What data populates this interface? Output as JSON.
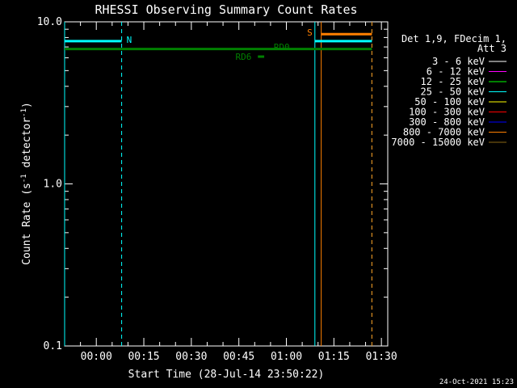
{
  "chart_data": {
    "type": "line",
    "title": "RHESSI Observing Summary Count Rates",
    "xlabel": "Start Time (28-Jul-14 23:50:22)",
    "ylabel_main": "Count Rate (s",
    "ylabel_sup1": "-1",
    "ylabel_mid": " detector",
    "ylabel_sup2": "-1",
    "ylabel_end": ")",
    "y_scale": "log",
    "ylim": [
      0.1,
      10.0
    ],
    "y_ticks": [
      {
        "value": 0.1,
        "label": "0.1"
      },
      {
        "value": 1.0,
        "label": "1.0"
      },
      {
        "value": 10.0,
        "label": "10.0"
      }
    ],
    "xlim_minutes": [
      -10,
      92
    ],
    "x_ticks": [
      {
        "value": 0,
        "label": "00:00"
      },
      {
        "value": 15,
        "label": "00:15"
      },
      {
        "value": 30,
        "label": "00:30"
      },
      {
        "value": 45,
        "label": "00:45"
      },
      {
        "value": 60,
        "label": "01:00"
      },
      {
        "value": 75,
        "label": "01:15"
      },
      {
        "value": 90,
        "label": "01:30"
      }
    ],
    "legend": {
      "header": [
        "Det 1,9, FDecim 1,",
        "Att 3"
      ],
      "placement": "right",
      "entries": [
        {
          "label": "3 - 6 keV",
          "color": "#ffffff"
        },
        {
          "label": "6 - 12 keV",
          "color": "#ff00ff"
        },
        {
          "label": "12 - 25 keV",
          "color": "#00ff00"
        },
        {
          "label": "25 - 50 keV",
          "color": "#00ffff"
        },
        {
          "label": "50 - 100 keV",
          "color": "#ffff00"
        },
        {
          "label": "100 - 300 keV",
          "color": "#ff0000"
        },
        {
          "label": "300 - 800 keV",
          "color": "#0000ff"
        },
        {
          "label": "800 - 7000 keV",
          "color": "#ff8000"
        },
        {
          "label": "7000 - 15000 keV",
          "color": "#8b6914"
        }
      ]
    },
    "series": [
      {
        "name": "25 - 50 keV",
        "color": "#00ffff",
        "segments": [
          [
            [
              -10,
              7.6
            ],
            [
              8,
              7.6
            ]
          ],
          [
            [
              69,
              7.6
            ],
            [
              87,
              7.6
            ]
          ]
        ]
      },
      {
        "name": "800 - 7000 keV",
        "color": "#ff8000",
        "segments": [
          [
            [
              71,
              8.4
            ],
            [
              87,
              8.4
            ]
          ]
        ]
      }
    ],
    "markers": [
      {
        "label": "N",
        "color": "#00ffff",
        "at": 8,
        "y": 7.6
      },
      {
        "label": "S",
        "color": "#ff8000",
        "at": 69,
        "y": 8.4
      }
    ],
    "flag_lines": [
      {
        "label": "RD0",
        "color": "#008000",
        "x": [
          -10,
          87
        ],
        "y": 6.8,
        "label_at": 56,
        "label_y": 7.0
      },
      {
        "label": "RD6",
        "color": "#008000",
        "x": [
          51,
          53
        ],
        "y": 6.1,
        "label_at": 49,
        "label_y": 6.1
      }
    ],
    "vlines": [
      {
        "x": -10,
        "color": "#00ffff",
        "style": "solid"
      },
      {
        "x": 8,
        "color": "#00ffff",
        "style": "dashed"
      },
      {
        "x": 69,
        "color": "#00ffff",
        "style": "solid"
      },
      {
        "x": 71,
        "color": "#ff8000",
        "style": "solid"
      },
      {
        "x": 87,
        "color": "#00ffff",
        "style": "dashed"
      },
      {
        "x": 87,
        "color": "#ff8000",
        "style": "dashed"
      }
    ]
  },
  "timestamp": "24-Oct-2021 15:23"
}
